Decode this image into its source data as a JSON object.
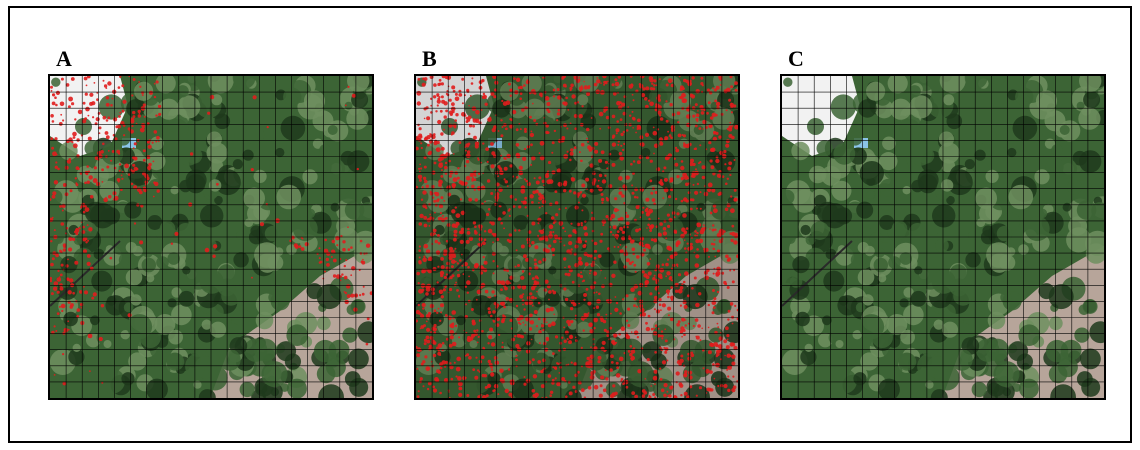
{
  "figure": {
    "panels": [
      {
        "label": "A",
        "overlay": "red-detection-partial",
        "color": "#e01d1d"
      },
      {
        "label": "B",
        "overlay": "red-detection-dense",
        "color": "#e01d1d"
      },
      {
        "label": "C",
        "overlay": "none"
      }
    ],
    "grid": {
      "cells_per_side": 20,
      "line_color": "#000000"
    },
    "palette": {
      "canopy_dark": "#1f3a1c",
      "canopy_mid": "#3c6435",
      "canopy_light": "#6e8f5f",
      "bare_ground": "#b7a59a",
      "building": "#f2f2f2",
      "pool": "#8bc4e8",
      "detection_red": "#e01d1d"
    }
  }
}
